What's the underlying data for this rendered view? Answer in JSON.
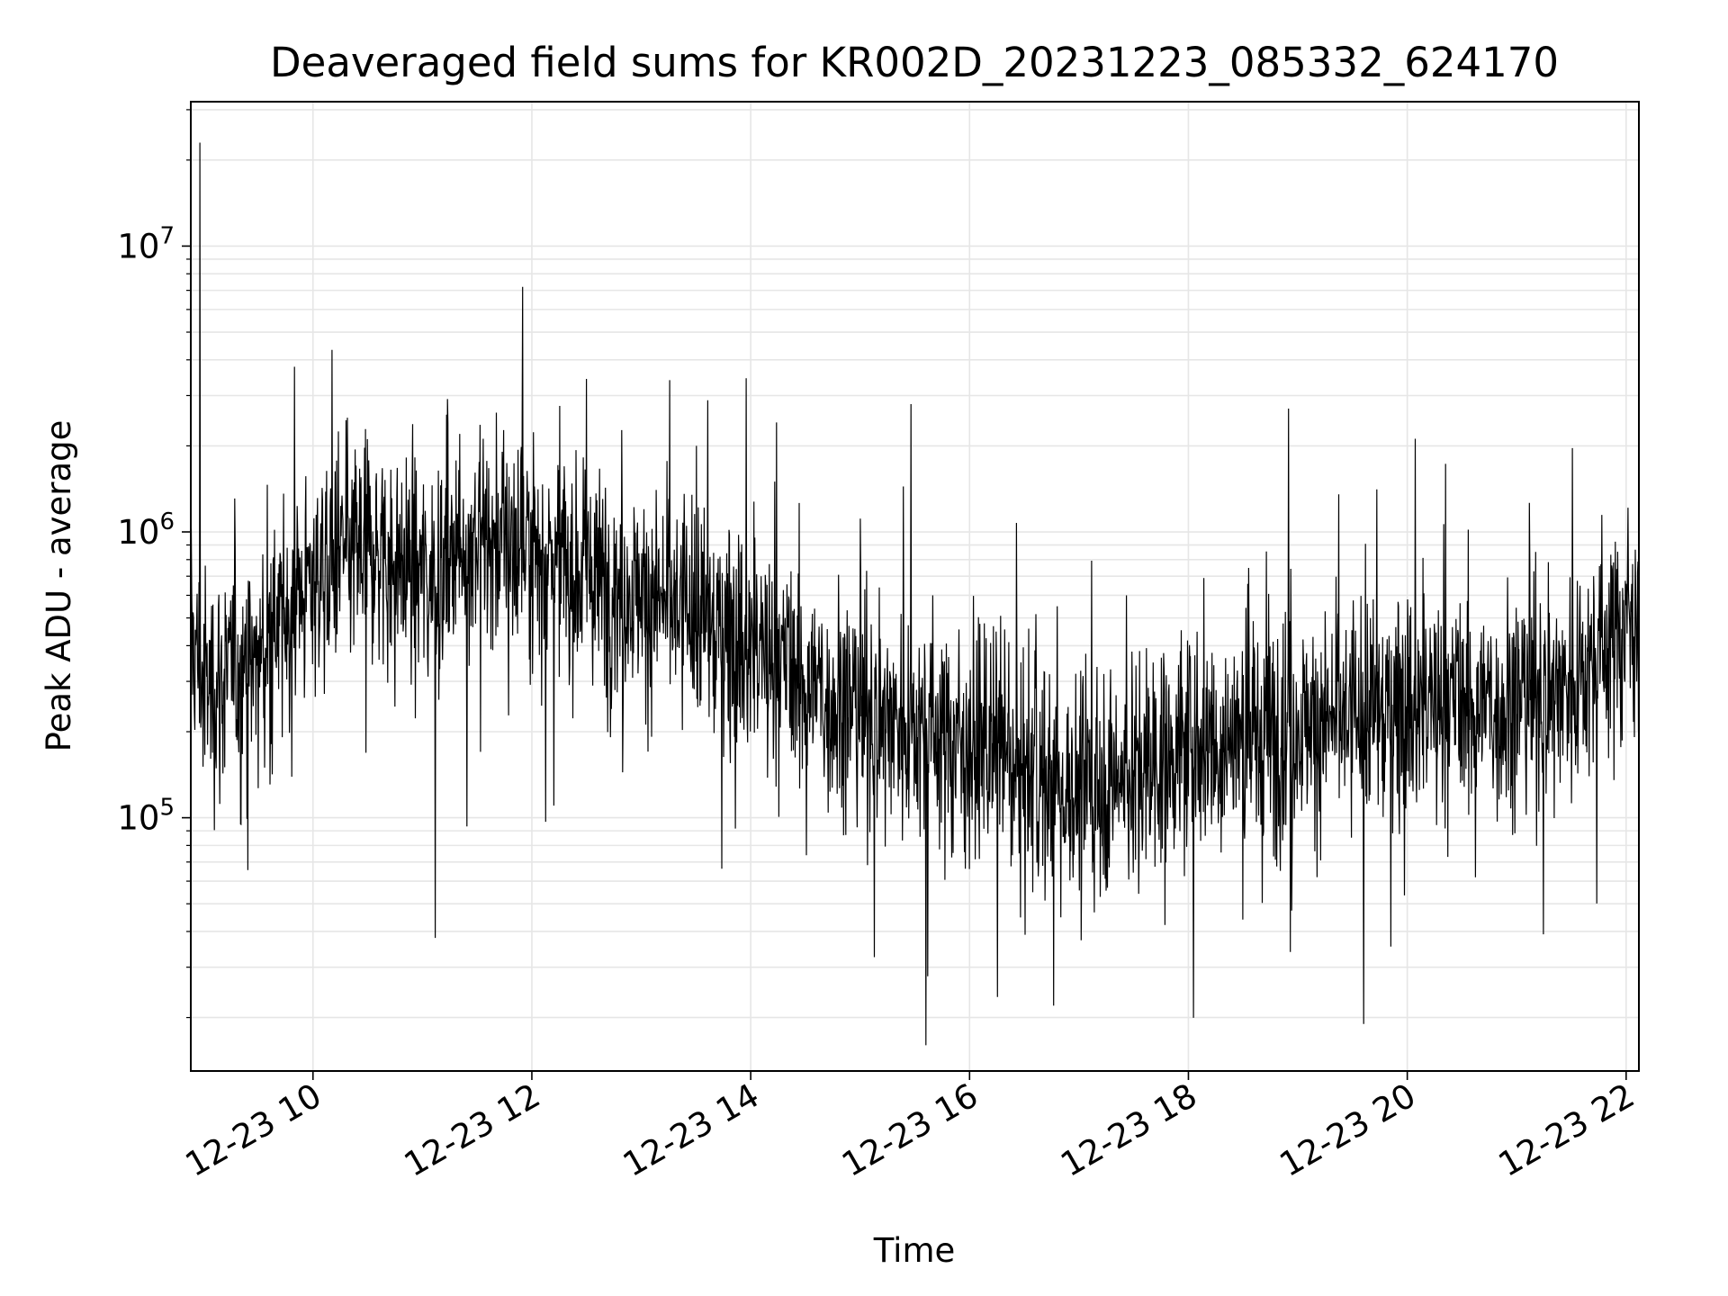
{
  "chart_data": {
    "type": "line",
    "title": "Deaveraged field sums for KR002D_20231223_085332_624170",
    "xlabel": "Time",
    "ylabel": "Peak ADU - average",
    "x_tick_labels": [
      "12-23 10",
      "12-23 12",
      "12-23 14",
      "12-23 16",
      "12-23 18",
      "12-23 20",
      "12-23 22"
    ],
    "x_range": [
      "2023-12-23 08:53",
      "2023-12-23 22:07"
    ],
    "y_scale": "log",
    "y_range": [
      13000,
      32000000
    ],
    "y_tick_labels": [
      {
        "base": "10",
        "exp": "5"
      },
      {
        "base": "10",
        "exp": "6"
      },
      {
        "base": "10",
        "exp": "7"
      }
    ],
    "grid": true,
    "line_color": "#000000",
    "grid_color": "#e6e6e6",
    "series": [
      {
        "x": [
          "2023-12-23 08:53",
          "2023-12-23 09:00",
          "2023-12-23 09:30",
          "2023-12-23 10:00",
          "2023-12-23 10:30",
          "2023-12-23 11:00",
          "2023-12-23 11:30",
          "2023-12-23 12:00",
          "2023-12-23 12:30",
          "2023-12-23 13:00",
          "2023-12-23 13:30",
          "2023-12-23 14:00",
          "2023-12-23 14:30",
          "2023-12-23 15:00",
          "2023-12-23 15:30",
          "2023-12-23 16:00",
          "2023-12-23 16:30",
          "2023-12-23 17:00",
          "2023-12-23 17:30",
          "2023-12-23 18:00",
          "2023-12-23 18:30",
          "2023-12-23 19:00",
          "2023-12-23 19:30",
          "2023-12-23 20:00",
          "2023-12-23 20:30",
          "2023-12-23 21:00",
          "2023-12-23 21:30",
          "2023-12-23 22:07"
        ],
        "values": [
          450000,
          280000,
          350000,
          700000,
          900000,
          700000,
          1000000,
          900000,
          700000,
          600000,
          500000,
          400000,
          300000,
          230000,
          220000,
          180000,
          150000,
          120000,
          150000,
          180000,
          190000,
          210000,
          220000,
          250000,
          250000,
          250000,
          300000,
          550000
        ],
        "peaks": [
          {
            "x": "2023-12-23 08:58",
            "value": 23000000
          },
          {
            "x": "2023-12-23 11:55",
            "value": 7200000
          },
          {
            "x": "2023-12-23 15:28",
            "value": 2800000
          },
          {
            "x": "2023-12-23 18:55",
            "value": 2700000
          }
        ],
        "troughs": [
          {
            "x": "2023-12-23 11:07",
            "value": 38000
          },
          {
            "x": "2023-12-23 15:36",
            "value": 16000
          },
          {
            "x": "2023-12-23 16:46",
            "value": 22000
          },
          {
            "x": "2023-12-23 19:36",
            "value": 19000
          }
        ]
      }
    ]
  }
}
